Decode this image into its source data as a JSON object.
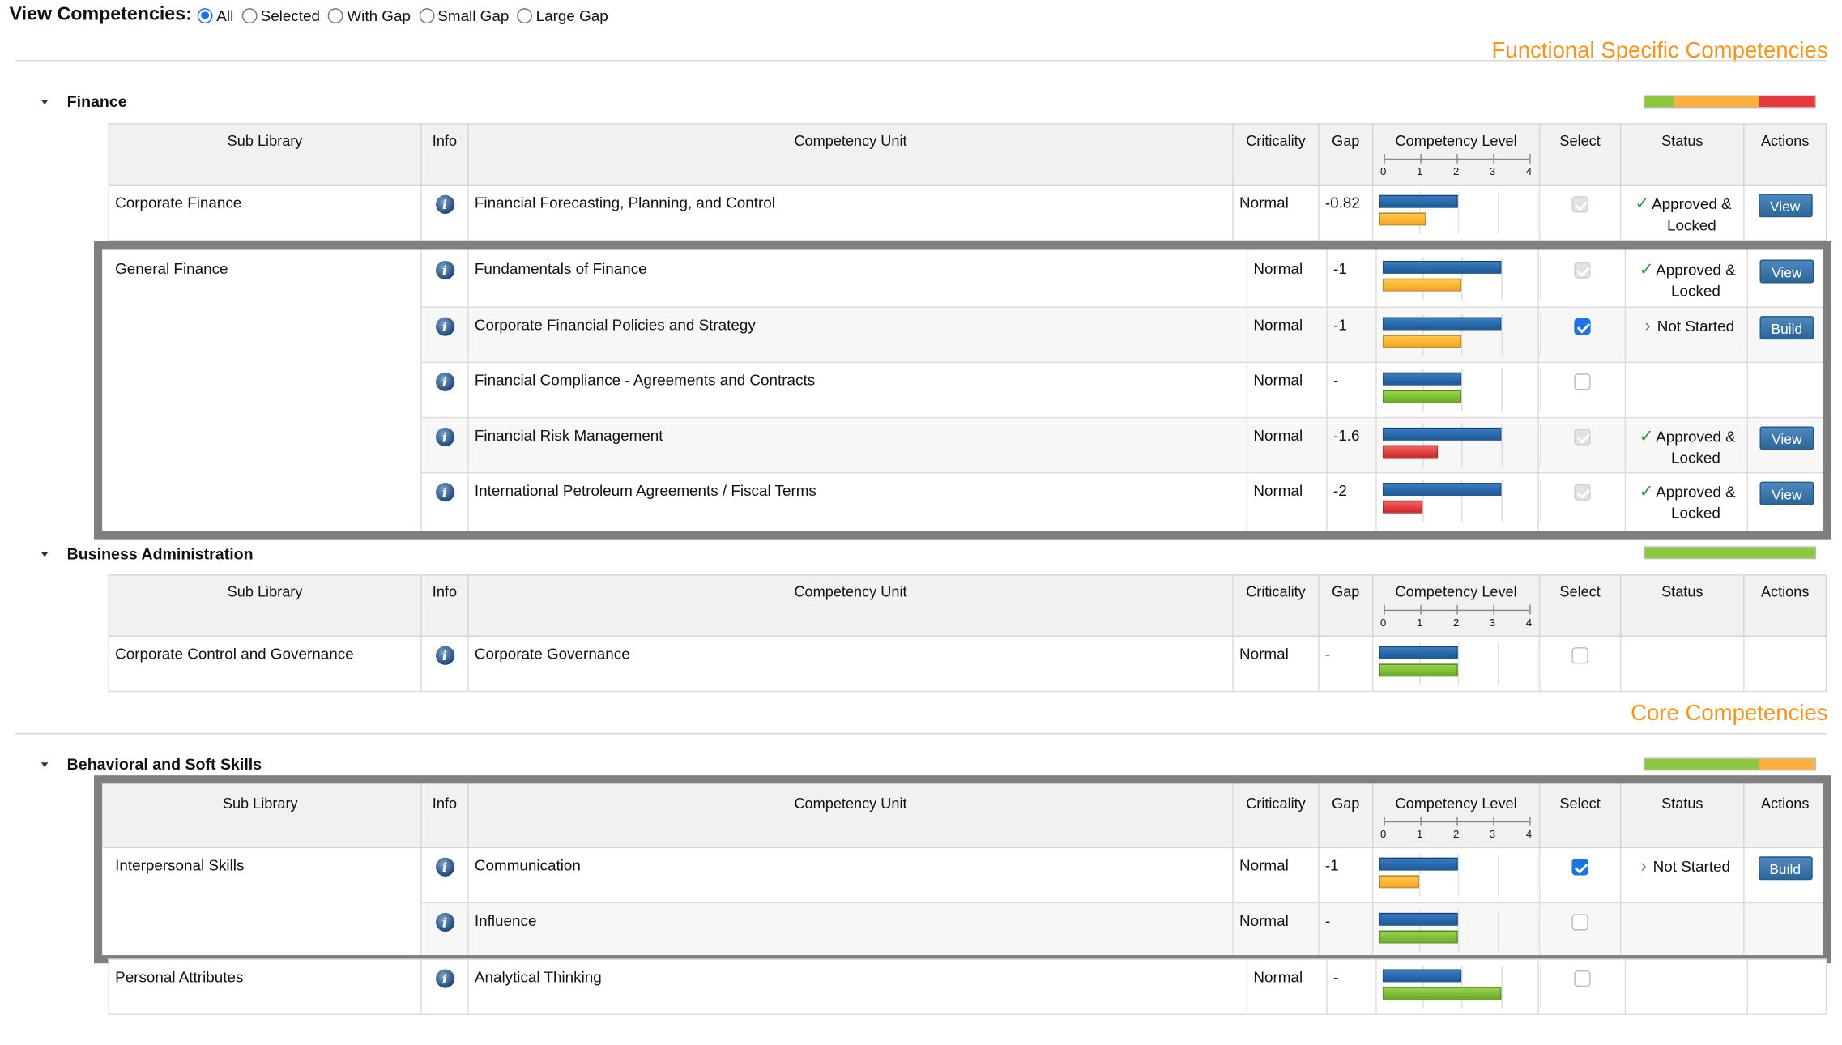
{
  "filter": {
    "label": "View Competencies:",
    "options": [
      {
        "label": "All",
        "selected": true
      },
      {
        "label": "Selected",
        "selected": false
      },
      {
        "label": "With Gap",
        "selected": false
      },
      {
        "label": "Small Gap",
        "selected": false
      },
      {
        "label": "Large Gap",
        "selected": false
      }
    ]
  },
  "colors": {
    "accent_orange": "#f7941d",
    "bar_blue": "#1c5a99",
    "bar_yellow": "#f6a623",
    "bar_green": "#6aae2a",
    "bar_red": "#d62727",
    "button_blue": "#2d6698"
  },
  "icons": {
    "info": "info-icon",
    "approved": "checkmark-icon",
    "not_started": "chevron-right-icon",
    "expand": "caret-down-icon"
  },
  "columns": {
    "sub_library": "Sub Library",
    "info": "Info",
    "unit": "Competency Unit",
    "criticality": "Criticality",
    "gap": "Gap",
    "level": "Competency Level",
    "select": "Select",
    "status": "Status",
    "actions": "Actions",
    "scale": [
      "0",
      "1",
      "2",
      "3",
      "4"
    ]
  },
  "sections": {
    "functional": "Functional Specific Competencies",
    "core": "Core Competencies"
  },
  "groups": {
    "finance": {
      "title": "Finance",
      "summary": [
        {
          "color": "green",
          "fraction": 0.17
        },
        {
          "color": "yellow",
          "fraction": 0.5
        },
        {
          "color": "red",
          "fraction": 0.33
        }
      ]
    },
    "business": {
      "title": "Business Administration",
      "summary": [
        {
          "color": "green",
          "fraction": 1.0
        }
      ]
    },
    "behavioral": {
      "title": "Behavioral and Soft Skills",
      "summary": [
        {
          "color": "green",
          "fraction": 0.67
        },
        {
          "color": "yellow",
          "fraction": 0.33
        }
      ]
    }
  },
  "rows": {
    "corp_finance": {
      "sub_library": "Corporate Finance",
      "unit": "Financial Forecasting, Planning, and Control",
      "criticality": "Normal",
      "gap": "-0.82",
      "status": [
        "Approved &",
        "Locked"
      ],
      "action": "View",
      "required": 2,
      "current": 1.18,
      "current_color": "yellow",
      "select": "disabled-checked"
    },
    "gf1": {
      "sub_library": "General Finance",
      "unit": "Fundamentals of Finance",
      "criticality": "Normal",
      "gap": "-1",
      "status": [
        "Approved &",
        "Locked"
      ],
      "action": "View",
      "required": 3,
      "current": 2,
      "current_color": "yellow",
      "select": "disabled-checked"
    },
    "gf2": {
      "unit": "Corporate Financial Policies and Strategy",
      "criticality": "Normal",
      "gap": "-1",
      "status": [
        "Not Started"
      ],
      "action": "Build",
      "required": 3,
      "current": 2,
      "current_color": "yellow",
      "select": "checked"
    },
    "gf3": {
      "unit": "Financial Compliance - Agreements and Contracts",
      "criticality": "Normal",
      "gap": "-",
      "required": 2,
      "current": 2,
      "current_color": "green",
      "select": "unchecked"
    },
    "gf4": {
      "unit": "Financial Risk Management",
      "criticality": "Normal",
      "gap": "-1.6",
      "status": [
        "Approved &",
        "Locked"
      ],
      "action": "View",
      "required": 3,
      "current": 1.4,
      "current_color": "red",
      "select": "disabled-checked"
    },
    "gf5": {
      "unit": "International Petroleum Agreements / Fiscal Terms",
      "criticality": "Normal",
      "gap": "-2",
      "status": [
        "Approved &",
        "Locked"
      ],
      "action": "View",
      "required": 3,
      "current": 1,
      "current_color": "red",
      "select": "disabled-checked"
    },
    "ba1": {
      "sub_library": "Corporate Control and Governance",
      "unit": "Corporate Governance",
      "criticality": "Normal",
      "gap": "-",
      "required": 2,
      "current": 2,
      "current_color": "green",
      "select": "unchecked"
    },
    "is1": {
      "sub_library": "Interpersonal Skills",
      "unit": "Communication",
      "criticality": "Normal",
      "gap": "-1",
      "status": [
        "Not Started"
      ],
      "action": "Build",
      "required": 2,
      "current": 1,
      "current_color": "yellow",
      "select": "checked"
    },
    "is2": {
      "unit": "Influence",
      "criticality": "Normal",
      "gap": "-",
      "required": 2,
      "current": 2,
      "current_color": "green",
      "select": "unchecked"
    },
    "pa1": {
      "sub_library": "Personal Attributes",
      "unit": "Analytical Thinking",
      "criticality": "Normal",
      "gap": "-",
      "required": 2,
      "current": 3,
      "current_color": "green",
      "select": "unchecked"
    }
  }
}
